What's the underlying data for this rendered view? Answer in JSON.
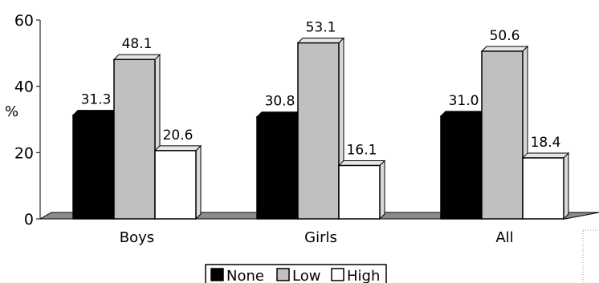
{
  "chart_data": {
    "type": "bar",
    "title": "",
    "xlabel": "",
    "ylabel": "%",
    "ylim": [
      0,
      60
    ],
    "yticks": [
      "0",
      "20",
      "40",
      "60"
    ],
    "categories": [
      "Boys",
      "Girls",
      "All"
    ],
    "series": [
      {
        "name": "None",
        "values": [
          31.3,
          30.8,
          31.0
        ],
        "value_labels": [
          "31.3",
          "30.8",
          "31.0"
        ],
        "color": "#000000"
      },
      {
        "name": "Low",
        "values": [
          48.1,
          53.1,
          50.6
        ],
        "value_labels": [
          "48.1",
          "53.1",
          "50.6"
        ],
        "color": "#c0c0c0"
      },
      {
        "name": "High",
        "values": [
          20.6,
          16.1,
          18.4
        ],
        "value_labels": [
          "20.6",
          "16.1",
          "18.4"
        ],
        "color": "#ffffff"
      }
    ],
    "style": "3d-bar",
    "floor_color": "#8c8c8c",
    "grid": false,
    "legend_position": "bottom-center"
  }
}
